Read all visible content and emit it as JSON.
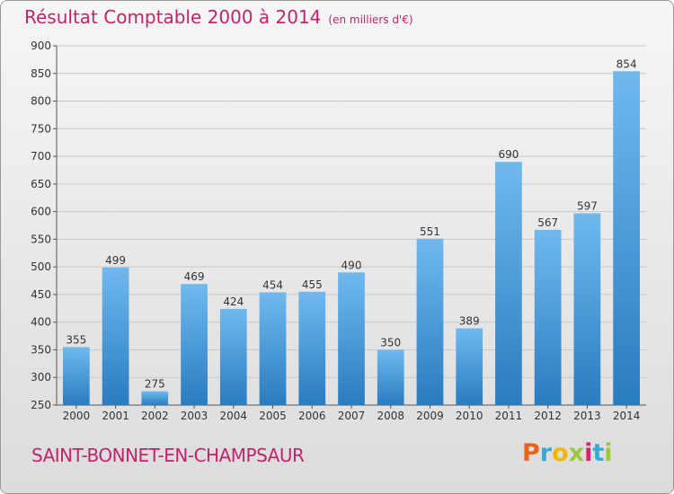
{
  "header": {
    "title": "Résultat Comptable 2000 à 2014",
    "subtitle": "(en milliers d'€)"
  },
  "footer": {
    "commune": "SAINT-BONNET-EN-CHAMPSAUR",
    "logo_letters": [
      "P",
      "r",
      "o",
      "x",
      "i",
      "t",
      "i"
    ],
    "logo_colors": [
      "#e8641b",
      "#3ba8d8",
      "#f2b705",
      "#9fc93c",
      "#d6246e",
      "#3ba8d8",
      "#9fc93c"
    ]
  },
  "colors": {
    "bar_light": "#6fb9ee",
    "bar_dark": "#2a7cc0",
    "title": "#c0246b",
    "grid": "#c8c8c8"
  },
  "chart_data": {
    "type": "bar",
    "title": "Résultat Comptable 2000 à 2014",
    "subtitle": "(en milliers d'€)",
    "categories": [
      "2000",
      "2001",
      "2002",
      "2003",
      "2004",
      "2005",
      "2006",
      "2007",
      "2008",
      "2009",
      "2010",
      "2011",
      "2012",
      "2013",
      "2014"
    ],
    "values": [
      355,
      499,
      275,
      469,
      424,
      454,
      455,
      490,
      350,
      551,
      389,
      690,
      567,
      597,
      854
    ],
    "ylim": [
      250,
      900
    ],
    "yticks": [
      250,
      300,
      350,
      400,
      450,
      500,
      550,
      600,
      650,
      700,
      750,
      800,
      850,
      900
    ],
    "grid": true,
    "xlabel": "",
    "ylabel": ""
  }
}
